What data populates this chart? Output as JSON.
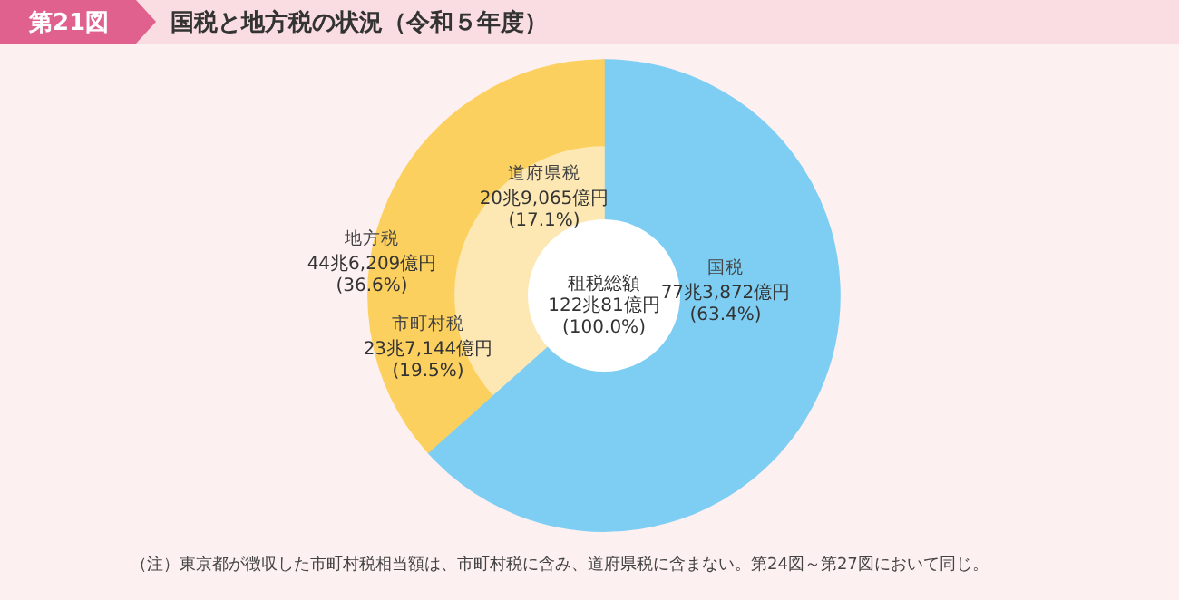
{
  "chart_data": [
    {
      "type": "donut",
      "title": "国税と地方税の状況（令和５年度）",
      "subtitle": "第21図",
      "categories": [
        "国税",
        "地方税"
      ],
      "values": [
        63.4,
        36.6
      ],
      "colors": [
        "#7ecef4",
        "#fcd05f"
      ],
      "value_labels": [
        "77兆3,872億円\n(63.4%)",
        "44兆6,209億円\n(36.6%)"
      ],
      "annotations": [
        "租税総額\n122兆81億円\n(100.0%)",
        "（注）東京都が徴収した市町村税相当額は、市町村税に含み、道府県税に含まない。第24図～第27図において同じ。"
      ]
    },
    {
      "type": "donut",
      "categories": [
        null,
        "市町村税",
        "道府県税"
      ],
      "values": [
        63.4,
        19.5,
        17.1
      ],
      "colors": [
        "#7ecef4",
        "#fde8b4",
        "#fde8b4"
      ],
      "value_labels": [
        null,
        "23兆7,144億円\n(19.5%)",
        "20兆9,065億円\n(17.1%)"
      ]
    }
  ]
}
